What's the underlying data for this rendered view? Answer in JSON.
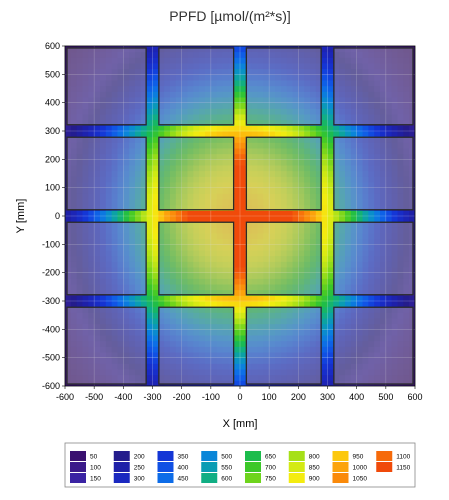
{
  "chart_data": {
    "type": "heatmap",
    "title": "PPFD [µmol/(m²*s)]",
    "xlabel": "X [mm]",
    "ylabel": "Y [mm]",
    "xlim": [
      -600,
      600
    ],
    "ylim": [
      -600,
      600
    ],
    "x_ticks": [
      -600,
      -500,
      -400,
      -300,
      -200,
      -100,
      0,
      100,
      200,
      300,
      400,
      500,
      600
    ],
    "y_ticks": [
      -600,
      -500,
      -400,
      -300,
      -200,
      -100,
      0,
      100,
      200,
      300,
      400,
      500,
      600
    ],
    "grid": true,
    "legend_position": "bottom",
    "peak_value": 1150,
    "colorscale": [
      {
        "label": "50",
        "color": "#3a1070"
      },
      {
        "label": "100",
        "color": "#3b1a8a"
      },
      {
        "label": "150",
        "color": "#3a23a3"
      },
      {
        "label": "200",
        "color": "#241c8c"
      },
      {
        "label": "250",
        "color": "#1e20a8"
      },
      {
        "label": "300",
        "color": "#1a28c0"
      },
      {
        "label": "350",
        "color": "#1436d6"
      },
      {
        "label": "400",
        "color": "#1050e4"
      },
      {
        "label": "450",
        "color": "#0d6ce8"
      },
      {
        "label": "500",
        "color": "#0a86d8"
      },
      {
        "label": "550",
        "color": "#0a9cb4"
      },
      {
        "label": "600",
        "color": "#10ae84"
      },
      {
        "label": "650",
        "color": "#1cbc4c"
      },
      {
        "label": "700",
        "color": "#3cc828"
      },
      {
        "label": "750",
        "color": "#6ed41c"
      },
      {
        "label": "800",
        "color": "#a6e018"
      },
      {
        "label": "850",
        "color": "#d4ea14"
      },
      {
        "label": "900",
        "color": "#f4ec10"
      },
      {
        "label": "950",
        "color": "#fcc80e"
      },
      {
        "label": "1000",
        "color": "#fca40c"
      },
      {
        "label": "1050",
        "color": "#fa8a0a"
      },
      {
        "label": "1100",
        "color": "#f66a0a"
      },
      {
        "label": "1150",
        "color": "#f04a0a"
      }
    ],
    "panels": {
      "x_edges": [
        -600,
        -300,
        0,
        300,
        600
      ],
      "y_edges": [
        -600,
        -300,
        0,
        300,
        600
      ],
      "gap_mm": 30
    }
  }
}
